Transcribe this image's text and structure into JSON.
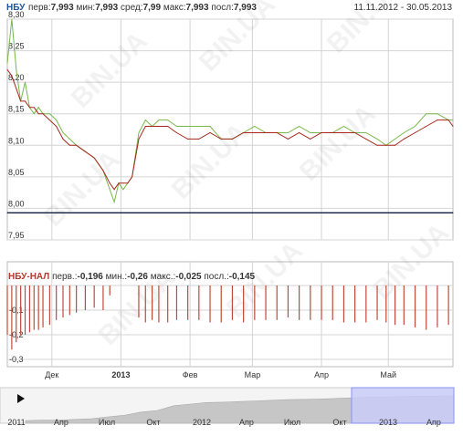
{
  "header": {
    "symbol": "НБУ",
    "first_label": "перв:",
    "first": "7,993",
    "min_label": "мин:",
    "min": "7,993",
    "avg_label": "сред:",
    "avg": "7,99",
    "max_label": "макс:",
    "max": "7,993",
    "last_label": "посл:",
    "last": "7,993",
    "date_range": "11.11.2012 - 30.05.2013"
  },
  "subheader": {
    "symbol": "НБУ-НАЛ",
    "first_label": "перв.:",
    "first": "-0,196",
    "min_label": "мин.:",
    "min": "-0,26",
    "max_label": "макс.:",
    "max": "-0,025",
    "last_label": "посл.:",
    "last": "-0,145"
  },
  "watermark": "BIN.UA",
  "colors": {
    "grid": "#d4d4d4",
    "nbu_line": "#0c1f3c",
    "green_series": "#79b84a",
    "red_series": "#a6281f",
    "diff_bars": "#c0493b",
    "navigator_fill": "#c6c6c6",
    "navigator_selection": "#c9cdf7",
    "navigator_selection_border": "#8a92ee",
    "symbol_nbu": "#1e56a0",
    "symbol_diff": "#b33a2c"
  },
  "navigator": {
    "labels": [
      "2011",
      "Апр",
      "Июл",
      "Окт",
      "2012",
      "Апр",
      "Июл",
      "Окт",
      "2013",
      "Апр"
    ],
    "selected_range": [
      "2012-11-11",
      "2013-05-30"
    ],
    "play_icon": "play-icon"
  },
  "chart_data": [
    {
      "type": "line",
      "title": "НБУ",
      "ylim": [
        7.95,
        8.3
      ],
      "yticks": [
        "7,95",
        "8,00",
        "8,05",
        "8,10",
        "8,15",
        "8,20",
        "8,25",
        "8,30"
      ],
      "xlim": [
        "2012-11-11",
        "2013-05-30"
      ],
      "grid": true,
      "series": [
        {
          "name": "НБУ",
          "color": "#0c1f3c",
          "x": [
            "2012-11-11",
            "2013-05-30"
          ],
          "y": [
            7.993,
            7.993
          ]
        },
        {
          "color": "#79b84a",
          "x": [
            "2012-11-11",
            "2012-11-13",
            "2012-11-15",
            "2012-11-17",
            "2012-11-19",
            "2012-11-21",
            "2012-11-23",
            "2012-11-25",
            "2012-11-27",
            "2012-11-30",
            "2012-12-03",
            "2012-12-06",
            "2012-12-09",
            "2012-12-12",
            "2012-12-16",
            "2012-12-20",
            "2012-12-24",
            "2012-12-27",
            "2012-12-29",
            "2012-12-31",
            "2013-01-02",
            "2013-01-04",
            "2013-01-06",
            "2013-01-09",
            "2013-01-12",
            "2013-01-15",
            "2013-01-18",
            "2013-01-22",
            "2013-01-26",
            "2013-01-31",
            "2013-02-05",
            "2013-02-10",
            "2013-02-15",
            "2013-02-20",
            "2013-02-25",
            "2013-03-02",
            "2013-03-07",
            "2013-03-12",
            "2013-03-17",
            "2013-03-22",
            "2013-03-27",
            "2013-04-01",
            "2013-04-06",
            "2013-04-11",
            "2013-04-16",
            "2013-04-21",
            "2013-04-26",
            "2013-04-30",
            "2013-05-04",
            "2013-05-08",
            "2013-05-13",
            "2013-05-18",
            "2013-05-23",
            "2013-05-28",
            "2013-05-30"
          ],
          "y": [
            8.23,
            8.3,
            8.22,
            8.17,
            8.2,
            8.16,
            8.15,
            8.16,
            8.15,
            8.15,
            8.14,
            8.12,
            8.11,
            8.1,
            8.09,
            8.08,
            8.06,
            8.03,
            8.01,
            8.04,
            8.03,
            8.04,
            8.05,
            8.12,
            8.14,
            8.13,
            8.14,
            8.14,
            8.13,
            8.13,
            8.13,
            8.13,
            8.11,
            8.11,
            8.12,
            8.13,
            8.12,
            8.12,
            8.12,
            8.13,
            8.12,
            8.12,
            8.12,
            8.13,
            8.12,
            8.12,
            8.11,
            8.1,
            8.11,
            8.12,
            8.13,
            8.15,
            8.15,
            8.14,
            8.14
          ]
        },
        {
          "color": "#a6281f",
          "x": [
            "2012-11-11",
            "2012-11-13",
            "2012-11-15",
            "2012-11-17",
            "2012-11-19",
            "2012-11-21",
            "2012-11-23",
            "2012-11-25",
            "2012-11-27",
            "2012-11-30",
            "2012-12-03",
            "2012-12-06",
            "2012-12-09",
            "2012-12-12",
            "2012-12-16",
            "2012-12-20",
            "2012-12-24",
            "2012-12-27",
            "2012-12-29",
            "2012-12-31",
            "2013-01-02",
            "2013-01-04",
            "2013-01-06",
            "2013-01-09",
            "2013-01-12",
            "2013-01-15",
            "2013-01-18",
            "2013-01-22",
            "2013-01-26",
            "2013-01-31",
            "2013-02-05",
            "2013-02-10",
            "2013-02-15",
            "2013-02-20",
            "2013-02-25",
            "2013-03-02",
            "2013-03-07",
            "2013-03-12",
            "2013-03-17",
            "2013-03-22",
            "2013-03-27",
            "2013-04-01",
            "2013-04-06",
            "2013-04-11",
            "2013-04-16",
            "2013-04-21",
            "2013-04-26",
            "2013-04-30",
            "2013-05-04",
            "2013-05-08",
            "2013-05-13",
            "2013-05-18",
            "2013-05-23",
            "2013-05-28",
            "2013-05-30"
          ],
          "y": [
            8.22,
            8.21,
            8.19,
            8.17,
            8.17,
            8.16,
            8.16,
            8.15,
            8.15,
            8.14,
            8.13,
            8.11,
            8.1,
            8.1,
            8.09,
            8.08,
            8.06,
            8.04,
            8.03,
            8.04,
            8.04,
            8.04,
            8.05,
            8.11,
            8.13,
            8.13,
            8.13,
            8.13,
            8.12,
            8.11,
            8.11,
            8.12,
            8.11,
            8.11,
            8.12,
            8.12,
            8.12,
            8.12,
            8.11,
            8.12,
            8.11,
            8.12,
            8.12,
            8.12,
            8.12,
            8.11,
            8.1,
            8.1,
            8.1,
            8.11,
            8.12,
            8.13,
            8.14,
            8.14,
            8.13
          ]
        }
      ]
    },
    {
      "type": "bar",
      "title": "НБУ-НАЛ",
      "ylim": [
        -0.3,
        0
      ],
      "yticks": [
        "-0,1",
        "-0,2",
        "-0,3"
      ],
      "grid": true,
      "xticks": [
        "Дек",
        "2013",
        "Фев",
        "Мар",
        "Апр",
        "Май"
      ],
      "x": [
        "2012-11-11",
        "2012-11-13",
        "2012-11-15",
        "2012-11-17",
        "2012-11-19",
        "2012-11-21",
        "2012-11-23",
        "2012-11-25",
        "2012-11-27",
        "2012-11-30",
        "2012-12-03",
        "2012-12-06",
        "2012-12-09",
        "2012-12-12",
        "2012-12-16",
        "2012-12-20",
        "2012-12-24",
        "2012-12-27",
        "2013-01-09",
        "2013-01-12",
        "2013-01-15",
        "2013-01-18",
        "2013-01-22",
        "2013-01-26",
        "2013-01-31",
        "2013-02-05",
        "2013-02-10",
        "2013-02-15",
        "2013-02-20",
        "2013-02-25",
        "2013-03-02",
        "2013-03-07",
        "2013-03-12",
        "2013-03-17",
        "2013-03-22",
        "2013-03-27",
        "2013-04-01",
        "2013-04-06",
        "2013-04-11",
        "2013-04-16",
        "2013-04-21",
        "2013-04-26",
        "2013-04-30",
        "2013-05-04",
        "2013-05-08",
        "2013-05-13",
        "2013-05-18",
        "2013-05-23",
        "2013-05-28"
      ],
      "values": [
        -0.2,
        -0.26,
        -0.23,
        -0.2,
        -0.2,
        -0.19,
        -0.18,
        -0.18,
        -0.17,
        -0.16,
        -0.14,
        -0.13,
        -0.12,
        -0.11,
        -0.1,
        -0.09,
        -0.1,
        -0.04,
        -0.13,
        -0.15,
        -0.14,
        -0.15,
        -0.15,
        -0.14,
        -0.14,
        -0.14,
        -0.15,
        -0.15,
        -0.14,
        -0.15,
        -0.14,
        -0.14,
        -0.14,
        -0.13,
        -0.14,
        -0.14,
        -0.14,
        -0.14,
        -0.15,
        -0.15,
        -0.15,
        -0.14,
        -0.15,
        -0.16,
        -0.16,
        -0.17,
        -0.18,
        -0.17,
        -0.16
      ]
    }
  ]
}
